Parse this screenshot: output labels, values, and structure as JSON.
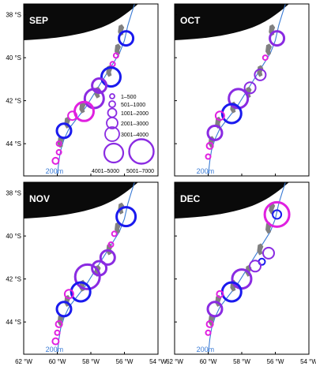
{
  "panels": [
    {
      "id": "sep",
      "label": "SEP"
    },
    {
      "id": "oct",
      "label": "OCT"
    },
    {
      "id": "nov",
      "label": "NOV"
    },
    {
      "id": "dec",
      "label": "DEC"
    }
  ],
  "depth_label": "200m",
  "lat_ticks": [
    "38 °S",
    "40 °S",
    "42 °S",
    "44 °S"
  ],
  "lon_ticks": [
    "62 °W",
    "60 °W",
    "58 °W",
    "56 °W",
    "54 °W"
  ],
  "legend": {
    "title": "",
    "classes": [
      "1–500",
      "501–1000",
      "1001–2000",
      "2001–3000",
      "3001–4000",
      "4001–5000",
      "5001–7000"
    ]
  },
  "colors": {
    "land": "#0a0a0a",
    "isobath": "#3a7bd5",
    "circle_magenta": "#e020e0",
    "circle_purple": "#8a2be2",
    "circle_blue": "#1a1aee",
    "island": "#808080"
  },
  "map_data": {
    "extent": {
      "lon": [
        -62,
        -54
      ],
      "lat": [
        -45.5,
        -37.5
      ]
    },
    "isobath_200m": [
      [
        -55.4,
        -37.5
      ],
      [
        -55.6,
        -38.0
      ],
      [
        -55.8,
        -38.5
      ],
      [
        -56.0,
        -39.2
      ],
      [
        -56.3,
        -39.8
      ],
      [
        -56.7,
        -40.3
      ],
      [
        -57.1,
        -40.8
      ],
      [
        -57.5,
        -41.3
      ],
      [
        -57.9,
        -41.8
      ],
      [
        -58.3,
        -42.3
      ],
      [
        -58.8,
        -42.8
      ],
      [
        -59.3,
        -43.3
      ],
      [
        -59.6,
        -43.8
      ],
      [
        -59.8,
        -44.3
      ],
      [
        -59.9,
        -44.8
      ],
      [
        -60.0,
        -45.5
      ]
    ],
    "sites_by_month": {
      "sep": [
        {
          "lon": -55.9,
          "lat": -39.1,
          "class": 5,
          "ring": "blue"
        },
        {
          "lon": -56.5,
          "lat": -39.9,
          "class": 1,
          "ring": "magenta"
        },
        {
          "lon": -56.7,
          "lat": -40.3,
          "class": 1,
          "ring": "magenta"
        },
        {
          "lon": -56.8,
          "lat": -40.9,
          "class": 6,
          "ring": "blue"
        },
        {
          "lon": -57.5,
          "lat": -41.3,
          "class": 5,
          "ring": "purple"
        },
        {
          "lon": -57.8,
          "lat": -41.9,
          "class": 6,
          "ring": "purple"
        },
        {
          "lon": -58.4,
          "lat": -42.5,
          "class": 6,
          "ring": "magenta"
        },
        {
          "lon": -59.1,
          "lat": -42.7,
          "class": 3,
          "ring": "magenta"
        },
        {
          "lon": -59.6,
          "lat": -43.4,
          "class": 5,
          "ring": "blue"
        },
        {
          "lon": -59.9,
          "lat": -44.0,
          "class": 1,
          "ring": "magenta"
        },
        {
          "lon": -59.9,
          "lat": -44.4,
          "class": 1,
          "ring": "magenta"
        },
        {
          "lon": -60.1,
          "lat": -44.8,
          "class": 2,
          "ring": "magenta"
        }
      ],
      "oct": [
        {
          "lon": -55.9,
          "lat": -39.1,
          "class": 5,
          "ring": "purple"
        },
        {
          "lon": -56.6,
          "lat": -40.0,
          "class": 1,
          "ring": "magenta"
        },
        {
          "lon": -56.9,
          "lat": -40.8,
          "class": 4,
          "ring": "purple"
        },
        {
          "lon": -57.5,
          "lat": -41.4,
          "class": 4,
          "ring": "purple"
        },
        {
          "lon": -58.2,
          "lat": -41.9,
          "class": 6,
          "ring": "purple"
        },
        {
          "lon": -58.6,
          "lat": -42.6,
          "class": 6,
          "ring": "blue"
        },
        {
          "lon": -59.3,
          "lat": -42.7,
          "class": 3,
          "ring": "magenta"
        },
        {
          "lon": -59.6,
          "lat": -43.5,
          "class": 5,
          "ring": "purple"
        },
        {
          "lon": -59.9,
          "lat": -44.1,
          "class": 2,
          "ring": "magenta"
        },
        {
          "lon": -60.0,
          "lat": -44.6,
          "class": 1,
          "ring": "magenta"
        }
      ],
      "nov": [
        {
          "lon": -55.9,
          "lat": -39.1,
          "class": 6,
          "ring": "blue"
        },
        {
          "lon": -56.6,
          "lat": -39.9,
          "class": 1,
          "ring": "magenta"
        },
        {
          "lon": -56.8,
          "lat": -40.4,
          "class": 1,
          "ring": "magenta"
        },
        {
          "lon": -57.0,
          "lat": -41.0,
          "class": 5,
          "ring": "purple"
        },
        {
          "lon": -57.5,
          "lat": -41.5,
          "class": 5,
          "ring": "purple"
        },
        {
          "lon": -58.2,
          "lat": -41.9,
          "class": 7,
          "ring": "purple"
        },
        {
          "lon": -58.6,
          "lat": -42.6,
          "class": 6,
          "ring": "blue"
        },
        {
          "lon": -59.3,
          "lat": -42.7,
          "class": 3,
          "ring": "magenta"
        },
        {
          "lon": -59.6,
          "lat": -43.4,
          "class": 5,
          "ring": "blue"
        },
        {
          "lon": -59.9,
          "lat": -44.1,
          "class": 2,
          "ring": "magenta"
        },
        {
          "lon": -60.0,
          "lat": -44.5,
          "class": 1,
          "ring": "magenta"
        },
        {
          "lon": -60.1,
          "lat": -44.9,
          "class": 2,
          "ring": "magenta"
        }
      ],
      "dec": [
        {
          "lon": -55.9,
          "lat": -39.0,
          "class": 7,
          "ring": "magenta"
        },
        {
          "lon": -55.9,
          "lat": -39.0,
          "class": 3,
          "ring": "blue"
        },
        {
          "lon": -56.4,
          "lat": -40.8,
          "class": 4,
          "ring": "purple"
        },
        {
          "lon": -56.8,
          "lat": -41.2,
          "class": 2,
          "ring": "blue"
        },
        {
          "lon": -57.2,
          "lat": -41.4,
          "class": 4,
          "ring": "purple"
        },
        {
          "lon": -58.0,
          "lat": -42.0,
          "class": 6,
          "ring": "purple"
        },
        {
          "lon": -58.6,
          "lat": -42.6,
          "class": 6,
          "ring": "blue"
        },
        {
          "lon": -59.3,
          "lat": -42.7,
          "class": 2,
          "ring": "magenta"
        },
        {
          "lon": -59.6,
          "lat": -43.4,
          "class": 5,
          "ring": "purple"
        },
        {
          "lon": -59.9,
          "lat": -44.1,
          "class": 2,
          "ring": "magenta"
        },
        {
          "lon": -60.0,
          "lat": -44.5,
          "class": 1,
          "ring": "magenta"
        }
      ]
    }
  }
}
